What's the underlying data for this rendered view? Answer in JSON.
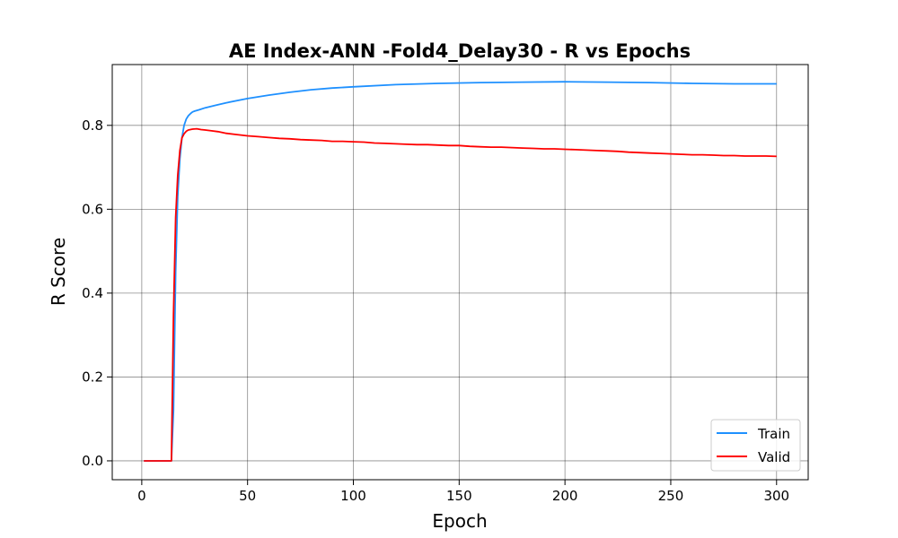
{
  "chart_data": {
    "type": "line",
    "title": "AE Index-ANN -Fold4_Delay30 - R vs Epochs",
    "xlabel": "Epoch",
    "ylabel": "R Score",
    "xlim": [
      -13.95,
      314.95
    ],
    "ylim": [
      -0.045,
      0.945
    ],
    "xticks": [
      0,
      50,
      100,
      150,
      200,
      250,
      300
    ],
    "yticks": [
      0.0,
      0.2,
      0.4,
      0.6,
      0.8
    ],
    "xtick_labels": [
      "0",
      "50",
      "100",
      "150",
      "200",
      "250",
      "300"
    ],
    "ytick_labels": [
      "0.0",
      "0.2",
      "0.4",
      "0.6",
      "0.8"
    ],
    "grid": true,
    "legend_position": "lower-right",
    "series": [
      {
        "name": "Train",
        "color": "#1e90ff",
        "x": [
          1,
          14,
          15,
          16,
          17,
          18,
          19,
          20,
          21,
          22,
          23,
          24,
          25,
          27,
          30,
          35,
          40,
          50,
          60,
          70,
          80,
          90,
          100,
          120,
          140,
          160,
          180,
          200,
          220,
          240,
          260,
          280,
          300
        ],
        "y": [
          0.0,
          0.0,
          0.12,
          0.45,
          0.63,
          0.72,
          0.77,
          0.8,
          0.815,
          0.823,
          0.828,
          0.832,
          0.834,
          0.837,
          0.842,
          0.848,
          0.854,
          0.864,
          0.872,
          0.879,
          0.885,
          0.889,
          0.892,
          0.897,
          0.9,
          0.902,
          0.903,
          0.904,
          0.903,
          0.902,
          0.9,
          0.899,
          0.899
        ]
      },
      {
        "name": "Valid",
        "color": "#ff0000",
        "x": [
          1,
          14,
          15,
          16,
          17,
          18,
          19,
          20,
          21,
          22,
          24,
          26,
          28,
          30,
          33,
          36,
          40,
          45,
          50,
          55,
          60,
          65,
          70,
          75,
          80,
          85,
          90,
          95,
          100,
          105,
          110,
          115,
          120,
          125,
          130,
          135,
          140,
          145,
          150,
          155,
          160,
          165,
          170,
          175,
          180,
          185,
          190,
          195,
          200,
          205,
          210,
          215,
          220,
          225,
          230,
          235,
          240,
          245,
          250,
          255,
          260,
          265,
          270,
          275,
          280,
          285,
          290,
          295,
          300
        ],
        "y": [
          0.0,
          0.0,
          0.35,
          0.58,
          0.68,
          0.74,
          0.77,
          0.78,
          0.786,
          0.789,
          0.791,
          0.792,
          0.79,
          0.789,
          0.787,
          0.785,
          0.781,
          0.778,
          0.775,
          0.773,
          0.771,
          0.769,
          0.768,
          0.766,
          0.765,
          0.764,
          0.762,
          0.762,
          0.761,
          0.76,
          0.758,
          0.757,
          0.756,
          0.755,
          0.754,
          0.754,
          0.753,
          0.752,
          0.752,
          0.75,
          0.749,
          0.748,
          0.748,
          0.747,
          0.746,
          0.745,
          0.744,
          0.744,
          0.743,
          0.742,
          0.741,
          0.74,
          0.739,
          0.738,
          0.736,
          0.735,
          0.734,
          0.733,
          0.732,
          0.731,
          0.73,
          0.73,
          0.729,
          0.728,
          0.728,
          0.727,
          0.727,
          0.727,
          0.726
        ]
      }
    ]
  }
}
